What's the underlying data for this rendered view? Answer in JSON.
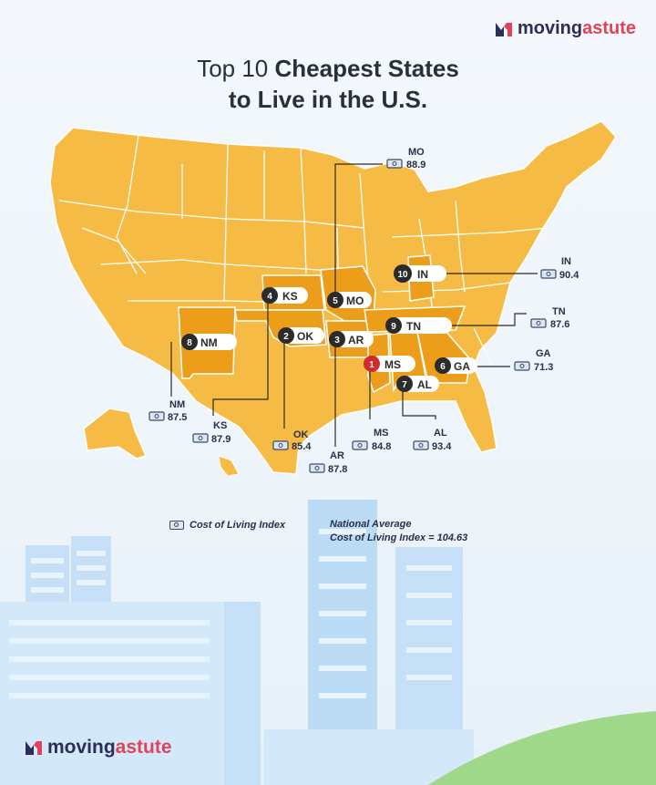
{
  "brand": {
    "part1": "moving",
    "part2": "astute",
    "color_primary": "#2a2f57",
    "color_accent": "#e0445a"
  },
  "title": {
    "line1_normal": "Top 10 ",
    "line1_bold": "Cheapest States",
    "line2_bold": "to Live in the U.S."
  },
  "legend": {
    "label": "Cost of Living Index",
    "icon": "cash-icon"
  },
  "national_average": {
    "line1": "National Average",
    "line2": "Cost of Living Index = 104.63"
  },
  "colors": {
    "map_base": "#f6bb45",
    "map_highlight": "#ec9e1a",
    "border": "#ffffff",
    "badge_dark": "#2b2b2b",
    "badge_first": "#d42a2a",
    "building": "#bcdcf6"
  },
  "states": [
    {
      "rank": "1",
      "abbr": "MS",
      "index": "84.8"
    },
    {
      "rank": "2",
      "abbr": "OK",
      "index": "85.4"
    },
    {
      "rank": "3",
      "abbr": "AR",
      "index": "87.8"
    },
    {
      "rank": "4",
      "abbr": "KS",
      "index": "87.9"
    },
    {
      "rank": "5",
      "abbr": "MO",
      "index": "88.9"
    },
    {
      "rank": "6",
      "abbr": "GA",
      "index": "71.3"
    },
    {
      "rank": "7",
      "abbr": "AL",
      "index": "93.4"
    },
    {
      "rank": "8",
      "abbr": "NM",
      "index": "87.5"
    },
    {
      "rank": "9",
      "abbr": "TN",
      "index": "87.6"
    },
    {
      "rank": "10",
      "abbr": "IN",
      "index": "90.4"
    }
  ]
}
